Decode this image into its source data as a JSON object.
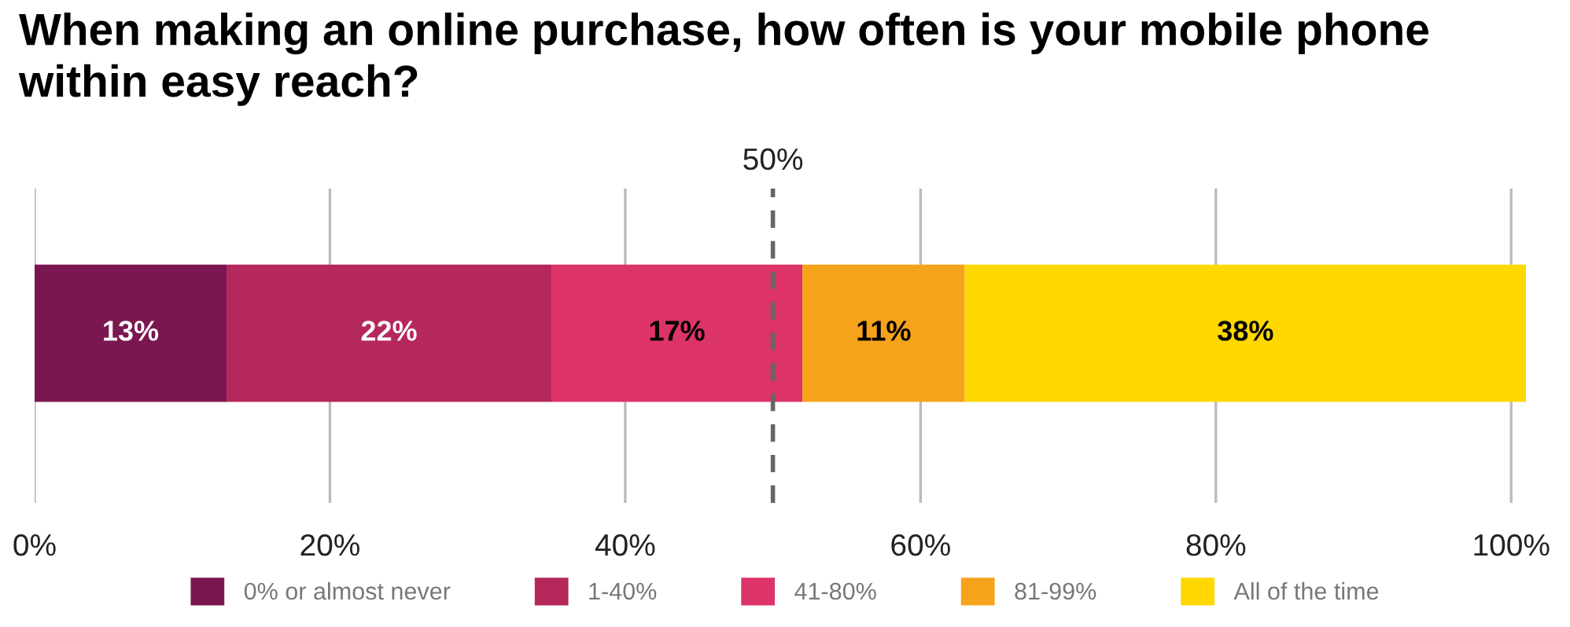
{
  "chart_data": {
    "type": "bar",
    "orientation": "horizontal",
    "stacked": true,
    "title": "When making an online purchase, how often is your mobile phone within easy reach?",
    "categories": [
      null
    ],
    "series": [
      {
        "name": "0% or almost never",
        "color": "#7b1750",
        "values": [
          13
        ],
        "value_labels": [
          "13%"
        ]
      },
      {
        "name": "1-40%",
        "color": "#b5285c",
        "values": [
          22
        ],
        "value_labels": [
          "22%"
        ]
      },
      {
        "name": "41-80%",
        "color": "#dc3468",
        "values": [
          17
        ],
        "value_labels": [
          "17%"
        ]
      },
      {
        "name": "81-99%",
        "color": "#f6a31c",
        "values": [
          11
        ],
        "value_labels": [
          "11%"
        ]
      },
      {
        "name": "All of the time",
        "color": "#ffd800",
        "values": [
          38
        ],
        "value_labels": [
          "38%"
        ]
      }
    ],
    "xlim": [
      0,
      101
    ],
    "xticks": [
      {
        "value": 0,
        "label": "0%"
      },
      {
        "value": 20,
        "label": "20%"
      },
      {
        "value": 40,
        "label": "40%"
      },
      {
        "value": 60,
        "label": "60%"
      },
      {
        "value": 80,
        "label": "80%"
      },
      {
        "value": 100,
        "label": "100%"
      }
    ],
    "grid": "x",
    "legend": "bottom",
    "ref_lines": [
      {
        "axis": "x",
        "value": 50,
        "label": "50%",
        "color": "#666666",
        "line_style": "dashed"
      }
    ]
  }
}
